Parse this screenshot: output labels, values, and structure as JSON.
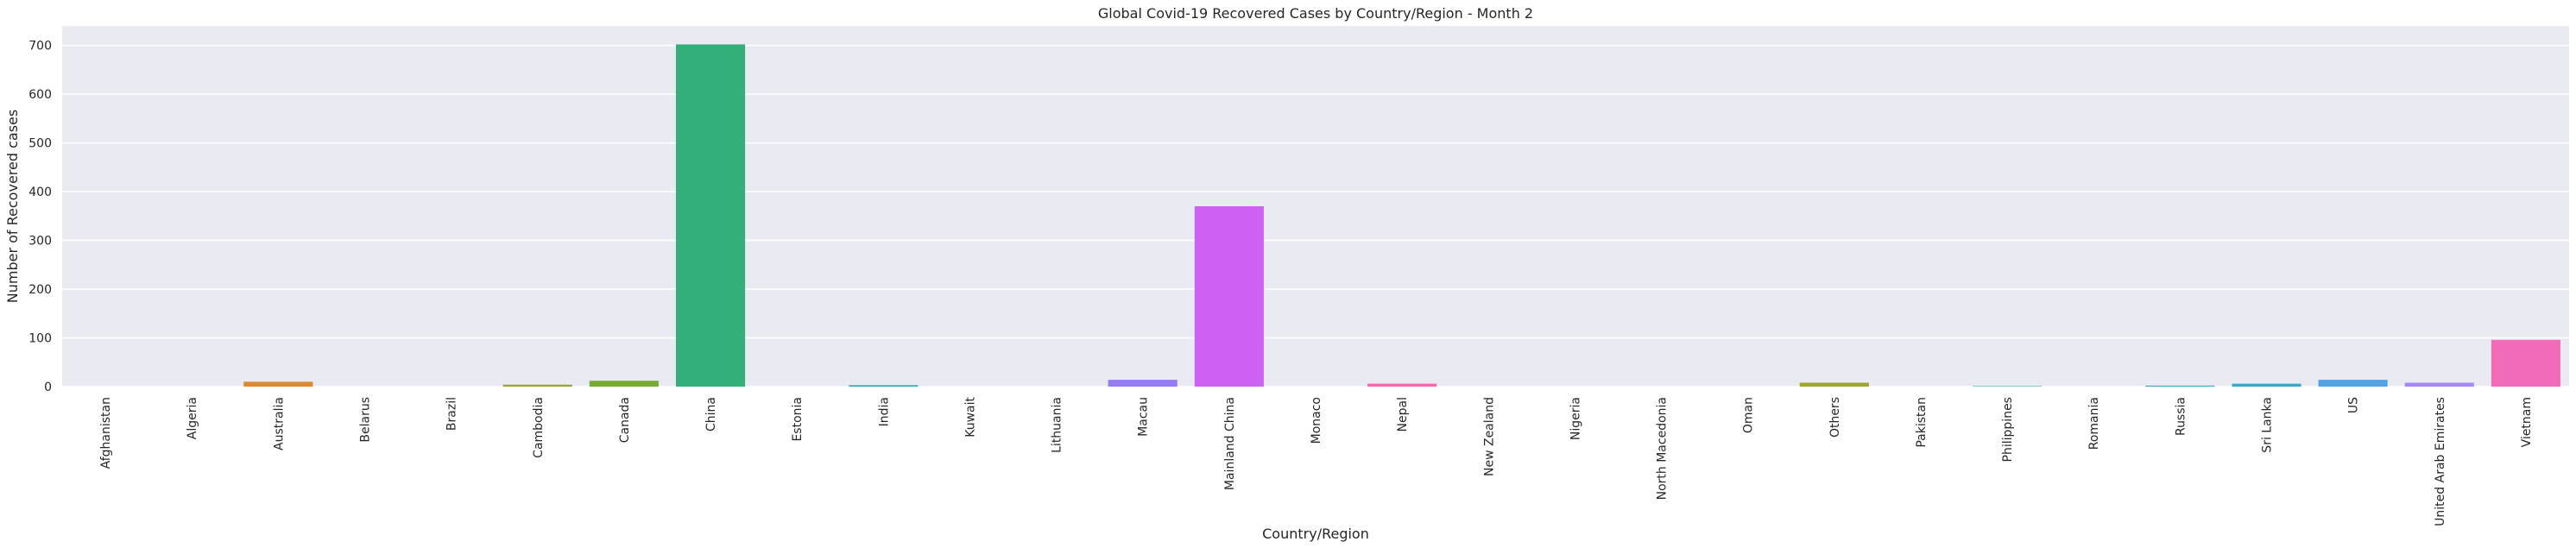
{
  "chart_data": {
    "type": "bar",
    "title": "Global Covid-19 Recovered Cases by Country/Region - Month 2",
    "xlabel": "Country/Region",
    "ylabel": "Number of Recovered cases",
    "ylim": [
      0,
      740
    ],
    "yticks": [
      0,
      100,
      200,
      300,
      400,
      500,
      600,
      700
    ],
    "grid": true,
    "categories": [
      "Afghanistan",
      "Algeria",
      "Australia",
      "Belarus",
      "Brazil",
      "Cambodia",
      "Canada",
      "China",
      "Estonia",
      "India",
      "Kuwait",
      "Lithuania",
      "Macau",
      "Mainland China",
      "Monaco",
      "Nepal",
      "New Zealand",
      "Nigeria",
      "North Macedonia",
      "Oman",
      "Others",
      "Pakistan",
      "Philippines",
      "Romania",
      "Russia",
      "Sri Lanka",
      "US",
      "United Arab Emirates",
      "Vietnam"
    ],
    "values": [
      0,
      0,
      10,
      0,
      0,
      4,
      12,
      702,
      0,
      3,
      0,
      0,
      14,
      370,
      0,
      6,
      0,
      0,
      0,
      0,
      8,
      0,
      1,
      0,
      2,
      6,
      14,
      8,
      96
    ],
    "colors": [
      "#f77189",
      "#f7754f",
      "#dc8932",
      "#c39532",
      "#ae9d31",
      "#97a431",
      "#77ab31",
      "#33b07a",
      "#35ad9c",
      "#36abae",
      "#38a9c5",
      "#3ba3ec",
      "#957cf4",
      "#cd61f4",
      "#f45cce",
      "#f666aa",
      "#e98a7c",
      "#e58d5a",
      "#d09640",
      "#b5a031",
      "#9da631",
      "#7cad31",
      "#36b18a",
      "#37ae9f",
      "#38acb0",
      "#3aa8c4",
      "#4ea5e5",
      "#a58af4",
      "#f26bb9"
    ]
  }
}
